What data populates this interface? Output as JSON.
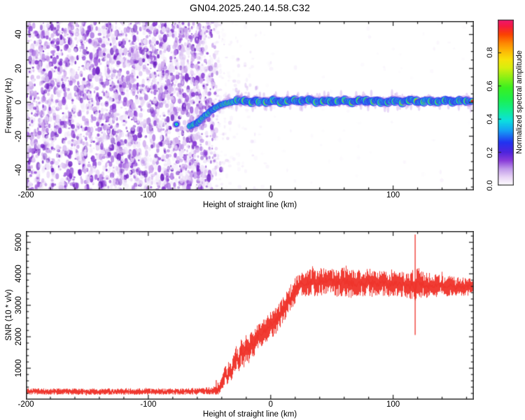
{
  "title": "GN04.2025.240.14.58.C32",
  "chart_data": [
    {
      "type": "heatmap",
      "name": "doppler-spectrogram",
      "xlabel": "Height of straight line (km)",
      "ylabel": "Frequency (Hz)",
      "xlim": [
        -200,
        166
      ],
      "ylim": [
        -52,
        48
      ],
      "xticks": [
        -200,
        -100,
        0,
        100
      ],
      "xtick_labels": [
        "-200",
        "-100",
        "0",
        "100"
      ],
      "x_minor_step": 20,
      "yticks": [
        40,
        20,
        0,
        -20,
        -40
      ],
      "ytick_labels": [
        "40",
        "20",
        "0",
        "-20",
        "-40"
      ],
      "y_minor_step": 5,
      "grid": false,
      "background": "#ffffff",
      "noise_field": {
        "x_range": [
          -200,
          -45
        ],
        "freq_range": [
          -52,
          48
        ],
        "palette": [
          "#f0e6fa",
          "#e3cef5",
          "#d0abee",
          "#b37fe5",
          "#9a55db",
          "#8232d2",
          "#6e21c2"
        ],
        "blob_count": 3200
      },
      "echo_trace": {
        "flat_frequency_hz": 0.7,
        "onset_points": [
          [
            -66,
            -14
          ],
          [
            -63,
            -13.2
          ],
          [
            -60,
            -12
          ],
          [
            -57.5,
            -10.5
          ],
          [
            -55,
            -9
          ],
          [
            -52.5,
            -7.3
          ],
          [
            -50,
            -5.8
          ],
          [
            -47.5,
            -4.4
          ],
          [
            -45,
            -3.2
          ],
          [
            -42.5,
            -2.2
          ],
          [
            -40,
            -1.4
          ],
          [
            -37,
            -0.8
          ],
          [
            -34,
            -0.3
          ],
          [
            -31,
            0.1
          ],
          [
            -28,
            0.5
          ]
        ],
        "flat_range_km": [
          -28,
          166
        ],
        "isolated_echo_km": -77,
        "isolated_echo_hz": -13,
        "core_colors": [
          "#d8143c",
          "#e8ee20",
          "#2ee23c",
          "#19c8f0",
          "#3440ee",
          "#b37fe5"
        ]
      },
      "colorbar": {
        "label": "Normalized spectral amplitude",
        "tick_labels": [
          "0.0",
          "0.2",
          "0.4",
          "0.6",
          "0.8"
        ],
        "tick_values": [
          0,
          0.2,
          0.4,
          0.6,
          0.8
        ],
        "range": [
          0,
          1
        ],
        "colormap": [
          [
            0.0,
            "#ffffff"
          ],
          [
            0.05,
            "#e9d5f6"
          ],
          [
            0.1,
            "#c09aea"
          ],
          [
            0.15,
            "#8a3cd9"
          ],
          [
            0.2,
            "#4f24dd"
          ],
          [
            0.26,
            "#2233f0"
          ],
          [
            0.33,
            "#159ff5"
          ],
          [
            0.39,
            "#0cdfe0"
          ],
          [
            0.455,
            "#10ee90"
          ],
          [
            0.52,
            "#1df04d"
          ],
          [
            0.59,
            "#3bf020"
          ],
          [
            0.65,
            "#8af015"
          ],
          [
            0.71,
            "#d8ef0e"
          ],
          [
            0.76,
            "#f8e20a"
          ],
          [
            0.81,
            "#fdb806"
          ],
          [
            0.86,
            "#fd8503"
          ],
          [
            0.91,
            "#fb4201"
          ],
          [
            0.96,
            "#f51a40"
          ],
          [
            1.0,
            "#ef1672"
          ]
        ]
      }
    },
    {
      "type": "line",
      "name": "snr-profile",
      "xlabel": "Height of straight line (km)",
      "ylabel": "SNR (10 * v/v)",
      "xlim": [
        -200,
        166
      ],
      "ylim": [
        0,
        5360
      ],
      "xticks": [
        -200,
        -100,
        0,
        100
      ],
      "xtick_labels": [
        "-200",
        "-100",
        "0",
        "100"
      ],
      "x_minor_step": 20,
      "yticks": [
        1000,
        2000,
        3000,
        4000,
        5000
      ],
      "ytick_labels": [
        "1000",
        "2000",
        "3000",
        "4000",
        "5000"
      ],
      "y_minor_step": 200,
      "line_color": "#ef3229",
      "series": [
        {
          "name": "SNR",
          "envelope_keypoints": [
            [
              -200,
              260,
              105
            ],
            [
              -160,
              255,
              100
            ],
            [
              -120,
              260,
              105
            ],
            [
              -90,
              255,
              100
            ],
            [
              -70,
              262,
              105
            ],
            [
              -60,
              268,
              108
            ],
            [
              -52,
              278,
              115
            ],
            [
              -46,
              295,
              130
            ],
            [
              -42,
              335,
              160
            ],
            [
              -39,
              600,
              250
            ],
            [
              -37,
              850,
              300
            ],
            [
              -35.5,
              700,
              255
            ],
            [
              -34,
              1000,
              320
            ],
            [
              -32,
              880,
              285
            ],
            [
              -30,
              1150,
              330
            ],
            [
              -28,
              1350,
              370
            ],
            [
              -26,
              1200,
              340
            ],
            [
              -24,
              1550,
              390
            ],
            [
              -22,
              1380,
              370
            ],
            [
              -20,
              1680,
              400
            ],
            [
              -18,
              1520,
              380
            ],
            [
              -16,
              1800,
              400
            ],
            [
              -14,
              1700,
              390
            ],
            [
              -12,
              1950,
              405
            ],
            [
              -9,
              2050,
              405
            ],
            [
              -6,
              2150,
              410
            ],
            [
              -3,
              2250,
              415
            ],
            [
              0,
              2330,
              420
            ],
            [
              3,
              2450,
              420
            ],
            [
              6,
              2600,
              425
            ],
            [
              9,
              2750,
              428
            ],
            [
              12,
              2950,
              430
            ],
            [
              15,
              3150,
              430
            ],
            [
              18,
              3350,
              425
            ],
            [
              21,
              3520,
              420
            ],
            [
              24,
              3650,
              412
            ],
            [
              27,
              3720,
              405
            ],
            [
              30,
              3680,
              420
            ],
            [
              34,
              3750,
              430
            ],
            [
              38,
              3700,
              448
            ],
            [
              42,
              3780,
              432
            ],
            [
              46,
              3720,
              440
            ],
            [
              50,
              3760,
              422
            ],
            [
              55,
              3700,
              450
            ],
            [
              60,
              3750,
              468
            ],
            [
              65,
              3650,
              450
            ],
            [
              70,
              3730,
              440
            ],
            [
              75,
              3680,
              432
            ],
            [
              80,
              3740,
              440
            ],
            [
              85,
              3660,
              422
            ],
            [
              90,
              3720,
              410
            ],
            [
              95,
              3650,
              400
            ],
            [
              100,
              3700,
              392
            ],
            [
              105,
              3640,
              402
            ],
            [
              110,
              3680,
              420
            ],
            [
              114,
              3620,
              440
            ],
            [
              118,
              3680,
              520
            ],
            [
              120.5,
              3650,
              600
            ],
            [
              123,
              3680,
              450
            ],
            [
              127,
              3640,
              410
            ],
            [
              131,
              3670,
              382
            ],
            [
              135,
              3620,
              362
            ],
            [
              139,
              3650,
              342
            ],
            [
              143,
              3600,
              330
            ],
            [
              147,
              3630,
              320
            ],
            [
              151,
              3590,
              310
            ],
            [
              155,
              3610,
              300
            ],
            [
              159,
              3580,
              292
            ],
            [
              163,
              3600,
              282
            ],
            [
              166,
              3570,
              272
            ]
          ],
          "spikes": [
            {
              "x_km": 118,
              "max": 5250,
              "min": 2060
            },
            {
              "x_km": -44.5,
              "max": 620,
              "min": 160
            },
            {
              "x_km": -43,
              "max": 540,
              "min": 170
            }
          ]
        }
      ]
    }
  ]
}
